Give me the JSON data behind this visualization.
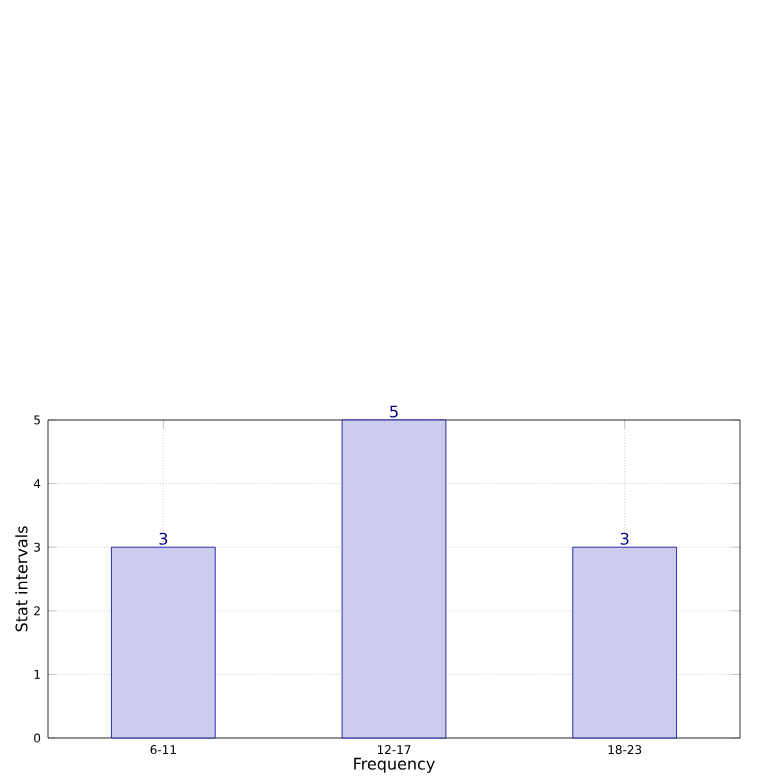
{
  "chart_data": {
    "type": "bar",
    "xlabel": "Frequency",
    "ylabel": "Stat intervals",
    "categories": [
      "6-11",
      "12-17",
      "18-23"
    ],
    "values": [
      3,
      5,
      3
    ],
    "color": "#ccccee",
    "ylim": [
      0,
      5
    ],
    "yticks": [
      0,
      1,
      2,
      3,
      4,
      5
    ],
    "grid": true,
    "data_labels": true
  }
}
